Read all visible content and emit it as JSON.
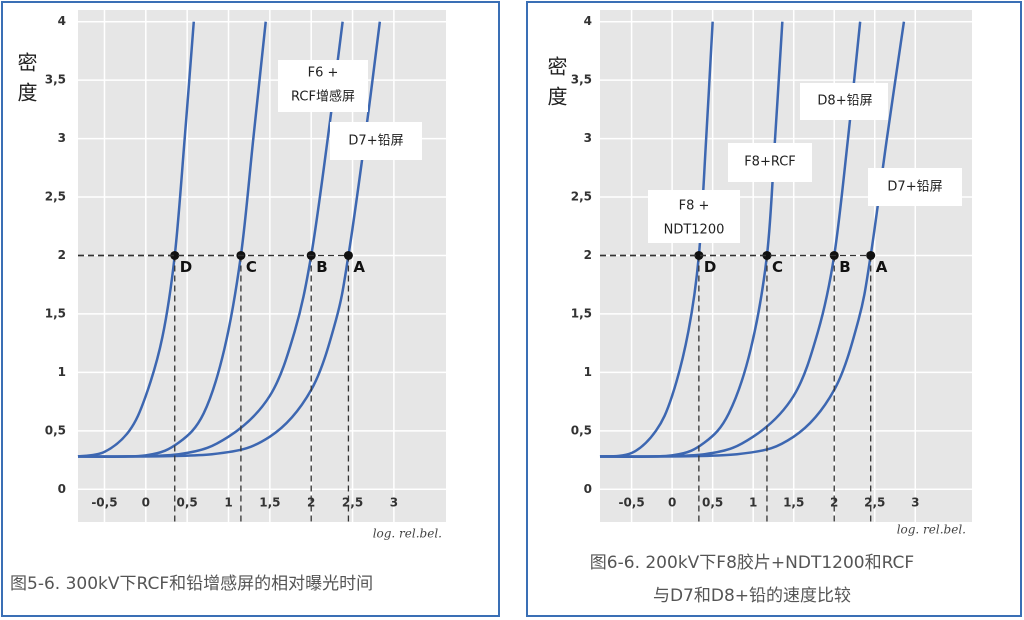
{
  "chart_data": [
    {
      "type": "line",
      "title": [
        "图5-6. 300kV下RCF和铅增感屏的相对曝光时间"
      ],
      "ylabel": "密度",
      "xlabel": "log. rel.bel.",
      "xlim": [
        -0.82,
        3.63
      ],
      "ylim": [
        -0.28,
        4.1
      ],
      "xticks": [
        {
          "value": -0.5,
          "label": "-0,5"
        },
        0,
        {
          "value": 0.5,
          "label": "0,5"
        },
        1,
        {
          "value": 1.5,
          "label": "1,5"
        },
        2,
        {
          "value": 2.5,
          "label": "2,5"
        },
        3
      ],
      "yticks": [
        0,
        {
          "value": 0.5,
          "label": "0,5"
        },
        1,
        {
          "value": 1.5,
          "label": "1,5"
        },
        2,
        {
          "value": 2.5,
          "label": "2,5"
        },
        3,
        {
          "value": 3.5,
          "label": "3,5"
        },
        4
      ],
      "grid": true,
      "series": [
        {
          "color": "#3d67b1",
          "x": [
            -0.82,
            -0.5,
            -0.2,
            0,
            0.2,
            0.35,
            0.47,
            0.58
          ],
          "values": [
            0.28,
            0.32,
            0.5,
            0.8,
            1.3,
            2,
            3,
            4
          ]
        },
        {
          "color": "#3d67b1",
          "x": [
            -0.82,
            0,
            0.4,
            0.7,
            0.95,
            1.15,
            1.3,
            1.45
          ],
          "values": [
            0.28,
            0.29,
            0.4,
            0.65,
            1.2,
            2,
            3,
            4
          ]
        },
        {
          "color": "#3d67b1",
          "x": [
            -0.82,
            0.4,
            1.0,
            1.5,
            1.8,
            2.0,
            2.2,
            2.38
          ],
          "values": [
            0.28,
            0.3,
            0.45,
            0.8,
            1.35,
            2,
            3,
            4
          ]
        },
        {
          "color": "#3d67b1",
          "x": [
            -0.82,
            0.8,
            1.5,
            2.0,
            2.3,
            2.45,
            2.65,
            2.83
          ],
          "values": [
            0.28,
            0.3,
            0.45,
            0.85,
            1.45,
            2,
            3,
            4
          ]
        }
      ],
      "markers": [
        {
          "label": "D",
          "x": 0.35,
          "y": 2
        },
        {
          "label": "C",
          "x": 1.15,
          "y": 2
        },
        {
          "label": "B",
          "x": 2.0,
          "y": 2
        },
        {
          "label": "A",
          "x": 2.45,
          "y": 2
        }
      ],
      "annotations": [
        {
          "lines": [
            "F6 +",
            "RCF增感屏"
          ]
        },
        {
          "lines": [
            "D7+铅屏"
          ]
        }
      ]
    },
    {
      "type": "line",
      "title": [
        "图6-6. 200kV下F8胶片+NDT1200和RCF",
        "与D7和D8+铅的速度比较"
      ],
      "ylabel": "密度",
      "xlabel": "log. rel.bel.",
      "xlim": [
        -0.89,
        3.7
      ],
      "ylim": [
        -0.28,
        4.1
      ],
      "xticks": [
        {
          "value": -0.5,
          "label": "-0,5"
        },
        0,
        {
          "value": 0.5,
          "label": "0,5"
        },
        1,
        {
          "value": 1.5,
          "label": "1,5"
        },
        2,
        {
          "value": 2.5,
          "label": "2,5"
        },
        3
      ],
      "yticks": [
        0,
        {
          "value": 0.5,
          "label": "0,5"
        },
        1,
        {
          "value": 1.5,
          "label": "1,5"
        },
        2,
        {
          "value": 2.5,
          "label": "2,5"
        },
        3,
        {
          "value": 3.5,
          "label": "3,5"
        },
        4
      ],
      "grid": true,
      "series": [
        {
          "color": "#3d67b1",
          "x": [
            -0.89,
            -0.5,
            -0.2,
            0,
            0.2,
            0.33,
            0.42,
            0.5
          ],
          "values": [
            0.28,
            0.31,
            0.5,
            0.8,
            1.35,
            2,
            3,
            4
          ]
        },
        {
          "color": "#3d67b1",
          "x": [
            -0.89,
            0,
            0.4,
            0.7,
            0.97,
            1.17,
            1.27,
            1.36
          ],
          "values": [
            0.28,
            0.29,
            0.4,
            0.65,
            1.2,
            2,
            3,
            4
          ]
        },
        {
          "color": "#3d67b1",
          "x": [
            -0.89,
            0.4,
            1.0,
            1.5,
            1.8,
            2.0,
            2.17,
            2.32
          ],
          "values": [
            0.28,
            0.3,
            0.45,
            0.8,
            1.35,
            2,
            3,
            4
          ]
        },
        {
          "color": "#3d67b1",
          "x": [
            -0.89,
            0.8,
            1.5,
            2.0,
            2.3,
            2.45,
            2.65,
            2.86
          ],
          "values": [
            0.28,
            0.3,
            0.45,
            0.85,
            1.45,
            2,
            3,
            4
          ]
        }
      ],
      "markers": [
        {
          "label": "D",
          "x": 0.33,
          "y": 2
        },
        {
          "label": "C",
          "x": 1.17,
          "y": 2
        },
        {
          "label": "B",
          "x": 2.0,
          "y": 2
        },
        {
          "label": "A",
          "x": 2.45,
          "y": 2
        }
      ],
      "annotations": [
        {
          "lines": [
            "F8 +",
            "NDT1200"
          ]
        },
        {
          "lines": [
            "F8+RCF"
          ]
        },
        {
          "lines": [
            "D8+铅屏"
          ]
        },
        {
          "lines": [
            "D7+铅屏"
          ]
        }
      ]
    }
  ]
}
